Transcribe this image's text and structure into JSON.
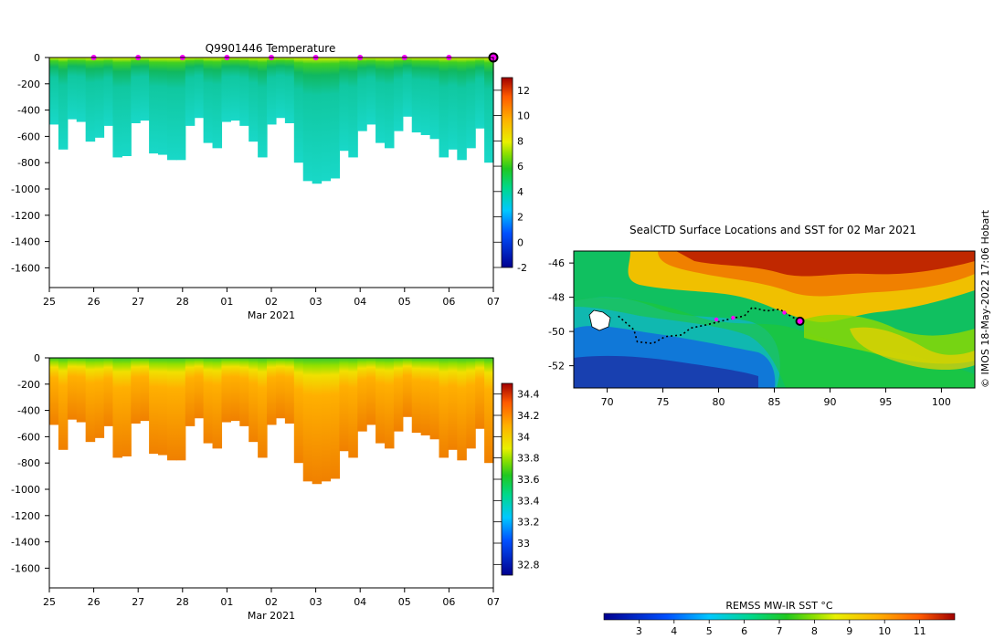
{
  "chart_data": [
    {
      "type": "heatmap",
      "title": "Q9901446  Temperature",
      "xlabel": "Mar 2021",
      "x_ticks": [
        "25",
        "26",
        "27",
        "28",
        "01",
        "02",
        "03",
        "04",
        "05",
        "06",
        "07"
      ],
      "y_ticks": [
        "0",
        "-200",
        "-400",
        "-600",
        "-800",
        "-1000",
        "-1200",
        "-1400",
        "-1600"
      ],
      "ylim": [
        -1750,
        0
      ],
      "colorbar_ticks": [
        "12",
        "10",
        "8",
        "6",
        "4",
        "2",
        "0",
        "-2"
      ],
      "colorbar_range": [
        -2,
        13
      ],
      "profile_bottom_depths": [
        510,
        700,
        470,
        490,
        640,
        610,
        520,
        760,
        750,
        500,
        480,
        730,
        740,
        780,
        780,
        520,
        460,
        650,
        690,
        490,
        480,
        520,
        640,
        760,
        510,
        460,
        500,
        800,
        940,
        960,
        940,
        920,
        710,
        760,
        560,
        510,
        650,
        690,
        560,
        450,
        570,
        590,
        620,
        760,
        700,
        780,
        690,
        540,
        800
      ],
      "surface_markers_day": [
        1,
        2,
        3,
        4,
        5,
        6,
        7,
        8,
        9
      ]
    },
    {
      "type": "heatmap",
      "title": "",
      "xlabel": "Mar 2021",
      "x_ticks": [
        "25",
        "26",
        "27",
        "28",
        "01",
        "02",
        "03",
        "04",
        "05",
        "06",
        "07"
      ],
      "y_ticks": [
        "0",
        "-200",
        "-400",
        "-600",
        "-800",
        "-1000",
        "-1200",
        "-1400",
        "-1600"
      ],
      "ylim": [
        -1750,
        0
      ],
      "colorbar_ticks": [
        "34.4",
        "34.2",
        "34",
        "33.8",
        "33.6",
        "33.4",
        "33.2",
        "33",
        "32.8"
      ],
      "colorbar_range": [
        32.7,
        34.5
      ]
    },
    {
      "type": "map",
      "title": "SealCTD Surface Locations and SST for 02 Mar 2021",
      "x_ticks": [
        "70",
        "75",
        "80",
        "85",
        "90",
        "95",
        "100"
      ],
      "y_ticks": [
        "-46",
        "-48",
        "-50",
        "-52"
      ],
      "xlim": [
        67,
        103
      ],
      "ylim": [
        -53.3,
        -45.3
      ],
      "track": [
        [
          71,
          -49.1
        ],
        [
          72.4,
          -49.9
        ],
        [
          72.7,
          -50.6
        ],
        [
          74.1,
          -50.7
        ],
        [
          75.2,
          -50.3
        ],
        [
          76.7,
          -50.2
        ],
        [
          77.5,
          -49.8
        ],
        [
          79,
          -49.6
        ],
        [
          80.2,
          -49.4
        ],
        [
          81.4,
          -49.2
        ],
        [
          82.3,
          -49.1
        ],
        [
          83,
          -48.6
        ],
        [
          84.3,
          -48.8
        ],
        [
          85.5,
          -48.7
        ],
        [
          86.2,
          -49
        ],
        [
          87.3,
          -49.4
        ]
      ],
      "magenta_points": [
        [
          79.8,
          -49.3
        ],
        [
          81.3,
          -49.2
        ],
        [
          85.9,
          -48.9
        ]
      ],
      "current_position": [
        87.3,
        -49.4
      ],
      "colorbar_title": "REMSS MW-IR SST °C",
      "colorbar_ticks": [
        "3",
        "4",
        "5",
        "6",
        "7",
        "8",
        "9",
        "10",
        "11"
      ],
      "colorbar_range": [
        2,
        12
      ]
    }
  ],
  "credit": "© IMOS 18-May-2022 17:06 Hobart",
  "colors": {
    "marker": "#ff00ff",
    "track": "#000000"
  }
}
